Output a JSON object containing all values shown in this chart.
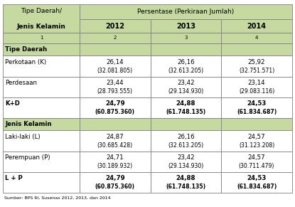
{
  "title_col1_line1": "Tipe Daerah/",
  "title_col1_line2": "Jenis Kelamin",
  "title_col2": "Persentase (Perkiraan Jumlah)",
  "sub_headers": [
    "2012",
    "2013",
    "2014"
  ],
  "col_numbers": [
    "1",
    "2",
    "3",
    "4"
  ],
  "rows": [
    {
      "label": "Tipe Daerah",
      "values": [
        "",
        "",
        ""
      ],
      "sub_values": [
        "",
        "",
        ""
      ],
      "is_section": true,
      "is_bold": false
    },
    {
      "label": "Perkotaan (K)",
      "values": [
        "26,14",
        "26,16",
        "25,92"
      ],
      "sub_values": [
        "(32.081.805)",
        "(32.613.205)",
        "(32.751.571)"
      ],
      "is_section": false,
      "is_bold": false
    },
    {
      "label": "Perdesaan",
      "values": [
        "23,44",
        "23,42",
        "23,14"
      ],
      "sub_values": [
        "(28.793.555)",
        "(29.134.930)",
        "(29.083.116)"
      ],
      "is_section": false,
      "is_bold": false
    },
    {
      "label": "K+D",
      "values": [
        "24,79",
        "24,88",
        "24,53"
      ],
      "sub_values": [
        "(60.875.360)",
        "(61.748.135)",
        "(61.834.687)"
      ],
      "is_bold": true,
      "sub_bold": true,
      "is_section": false
    },
    {
      "label": "Jenis Kelamin",
      "values": [
        "",
        "",
        ""
      ],
      "sub_values": [
        "",
        "",
        ""
      ],
      "is_section": true,
      "is_bold": false
    },
    {
      "label": "Laki-laki (L)",
      "values": [
        "24,87",
        "26,16",
        "24,57"
      ],
      "sub_values": [
        "(30.685.428)",
        "(32.613.205)",
        "(31.123.208)"
      ],
      "is_section": false,
      "is_bold": false
    },
    {
      "label": "Perempuan (P)",
      "values": [
        "24,71",
        "23,42",
        "24,57"
      ],
      "sub_values": [
        "(30.189.932)",
        "(29.134.930)",
        "(30.711.479)"
      ],
      "is_section": false,
      "is_bold": false
    },
    {
      "label": "L + P",
      "values": [
        "24,79",
        "24,88",
        "24,53"
      ],
      "sub_values": [
        "(60.875.360)",
        "(61.748.135)",
        "(61.834.687)"
      ],
      "is_bold": true,
      "sub_bold": true,
      "is_section": false
    }
  ],
  "header_bg": "#c6d9a0",
  "section_bg": "#c6d9a0",
  "normal_bg": "#ffffff",
  "border_color": "#808080",
  "source_text": "Sumber: BPS RI, Susenas 2012, 2013, dan 2014"
}
